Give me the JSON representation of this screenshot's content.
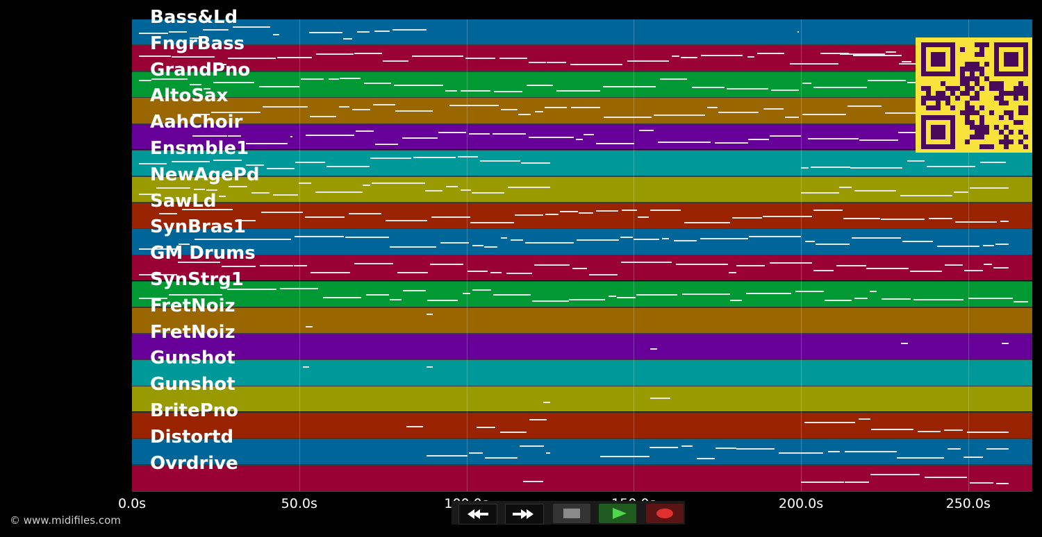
{
  "copyright": "© www.midifiles.com",
  "tracks": [
    {
      "name": "Bass&Ld",
      "color": "#006699"
    },
    {
      "name": "FngrBass",
      "color": "#990033"
    },
    {
      "name": "GrandPno",
      "color": "#009933"
    },
    {
      "name": "AltoSax",
      "color": "#996600"
    },
    {
      "name": "AahChoir",
      "color": "#660099"
    },
    {
      "name": "Ensmble1",
      "color": "#009999"
    },
    {
      "name": "NewAgePd",
      "color": "#999900"
    },
    {
      "name": "SawLd",
      "color": "#992200"
    },
    {
      "name": "SynBras1",
      "color": "#006699"
    },
    {
      "name": "GM Drums",
      "color": "#990033"
    },
    {
      "name": "SynStrg1",
      "color": "#009933"
    },
    {
      "name": "FretNoiz",
      "color": "#996600"
    },
    {
      "name": "FretNoiz",
      "color": "#660099"
    },
    {
      "name": "Gunshot",
      "color": "#009999"
    },
    {
      "name": "Gunshot",
      "color": "#999900"
    },
    {
      "name": "BritePno",
      "color": "#992200"
    },
    {
      "name": "Distortd",
      "color": "#006699"
    },
    {
      "name": "Ovrdrive",
      "color": "#990033"
    }
  ],
  "time_axis": {
    "ticks": [
      "0.0s",
      "50.0s",
      "100.0s",
      "150.0s",
      "200.0s",
      "250.0s"
    ],
    "tick_values": [
      0,
      50,
      100,
      150,
      200,
      250
    ],
    "max": 269
  },
  "transport": {
    "rewind_icon": "rewind-icon",
    "forward_icon": "fast-forward-icon",
    "stop_icon": "stop-icon",
    "play_icon": "play-icon",
    "record_icon": "record-icon"
  },
  "overlay": {
    "qr_icon": "qr-code-icon",
    "qr_color": "#f7e33a",
    "qr_fg": "#4a0a5a"
  }
}
